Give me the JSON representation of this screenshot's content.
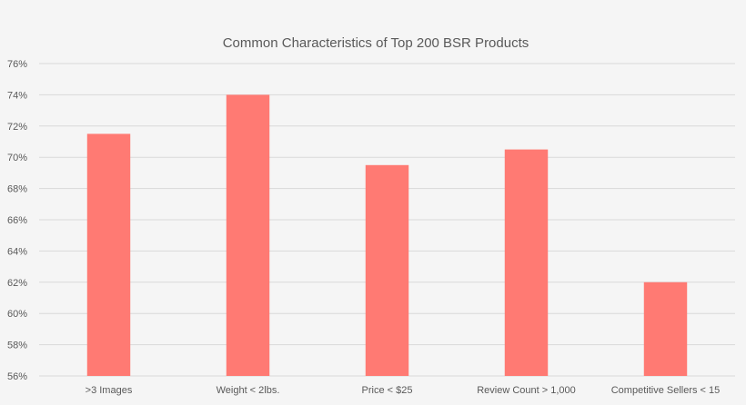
{
  "chart_data": {
    "type": "bar",
    "title": "Common Characteristics of Top 200 BSR Products",
    "xlabel": "",
    "ylabel": "",
    "categories": [
      ">3 Images",
      "Weight < 2lbs.",
      "Price < $25",
      "Review Count > 1,000",
      "Competitive Sellers < 15"
    ],
    "values": [
      71.5,
      74,
      69.5,
      70.5,
      62
    ],
    "ylim": [
      56,
      76
    ],
    "yticks": [
      56,
      58,
      60,
      62,
      64,
      66,
      68,
      70,
      72,
      74,
      76
    ],
    "ytick_labels": [
      "56%",
      "58%",
      "60%",
      "62%",
      "64%",
      "66%",
      "68%",
      "70%",
      "72%",
      "74%",
      "76%"
    ],
    "bar_color": "#ff7a73",
    "grid": true,
    "legend": "none"
  }
}
